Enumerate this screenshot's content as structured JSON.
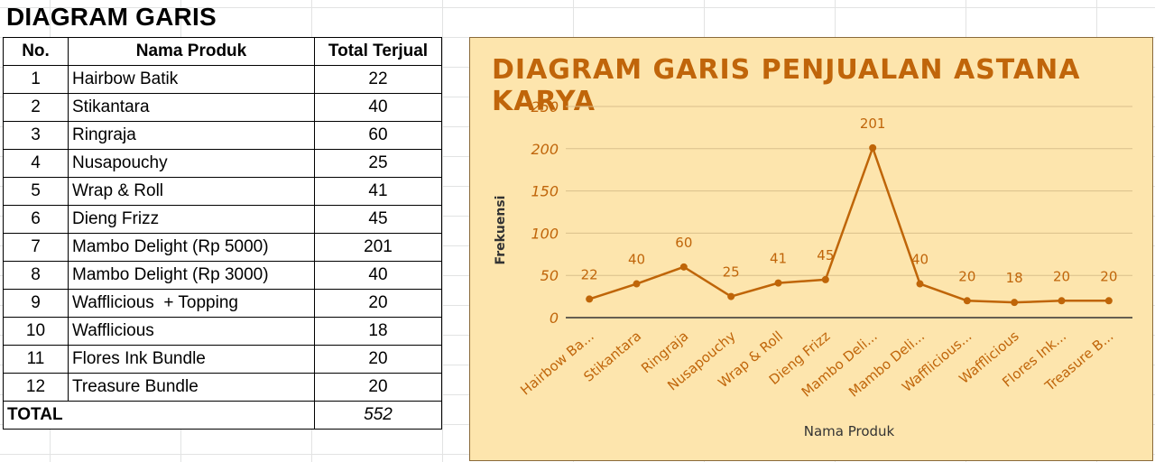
{
  "sheet": {
    "title": "DIAGRAM GARIS",
    "headers": [
      "No.",
      "Nama Produk",
      "Total Terjual"
    ],
    "rows": [
      {
        "no": "1",
        "name": "Hairbow Batik",
        "total": "22"
      },
      {
        "no": "2",
        "name": "Stikantara",
        "total": "40"
      },
      {
        "no": "3",
        "name": "Ringraja",
        "total": "60"
      },
      {
        "no": "4",
        "name": "Nusapouchy",
        "total": "25"
      },
      {
        "no": "5",
        "name": "Wrap & Roll",
        "total": "41"
      },
      {
        "no": "6",
        "name": "Dieng Frizz",
        "total": "45"
      },
      {
        "no": "7",
        "name": "Mambo Delight (Rp 5000)",
        "total": "201"
      },
      {
        "no": "8",
        "name": "Mambo Delight (Rp 3000)",
        "total": "40"
      },
      {
        "no": "9",
        "name": "Wafflicious  + Topping",
        "total": "20"
      },
      {
        "no": "10",
        "name": "Wafflicious",
        "total": "18"
      },
      {
        "no": "11",
        "name": "Flores Ink Bundle",
        "total": "20"
      },
      {
        "no": "12",
        "name": "Treasure Bundle",
        "total": "20"
      }
    ],
    "total_label": "TOTAL",
    "total_value": "552"
  },
  "chart_data": {
    "type": "line",
    "title": "DIAGRAM GARIS PENJUALAN ASTANA KARYA",
    "xlabel": "Nama Produk",
    "ylabel": "Frekuensi",
    "categories": [
      "Hairbow Ba...",
      "Stikantara",
      "Ringraja",
      "Nusapouchy",
      "Wrap & Roll",
      "Dieng Frizz",
      "Mambo Deli...",
      "Mambo Deli...",
      "Wafflicious...",
      "Wafflicious",
      "Flores Ink...",
      "Treasure B..."
    ],
    "values": [
      22,
      40,
      60,
      25,
      41,
      45,
      201,
      40,
      20,
      18,
      20,
      20
    ],
    "yticks": [
      0,
      50,
      100,
      150,
      200,
      250
    ],
    "ylim": [
      0,
      250
    ],
    "grid": true,
    "data_labels": true,
    "colors": {
      "line": "#bf6508",
      "background": "#fde5ad",
      "grid": "#d9c08c",
      "text": "#c0650a"
    }
  }
}
